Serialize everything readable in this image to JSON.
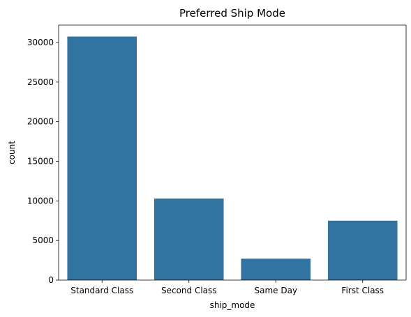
{
  "chart_data": {
    "type": "bar",
    "title": "Preferred Ship Mode",
    "xlabel": "ship_mode",
    "ylabel": "count",
    "categories": [
      "Standard Class",
      "Second Class",
      "Same Day",
      "First Class"
    ],
    "values": [
      30750,
      10300,
      2700,
      7500
    ],
    "ylim": [
      0,
      32200
    ],
    "yticks": [
      0,
      5000,
      10000,
      15000,
      20000,
      25000,
      30000
    ],
    "bar_color": "#3274a1",
    "grid": false,
    "legend": "none"
  }
}
